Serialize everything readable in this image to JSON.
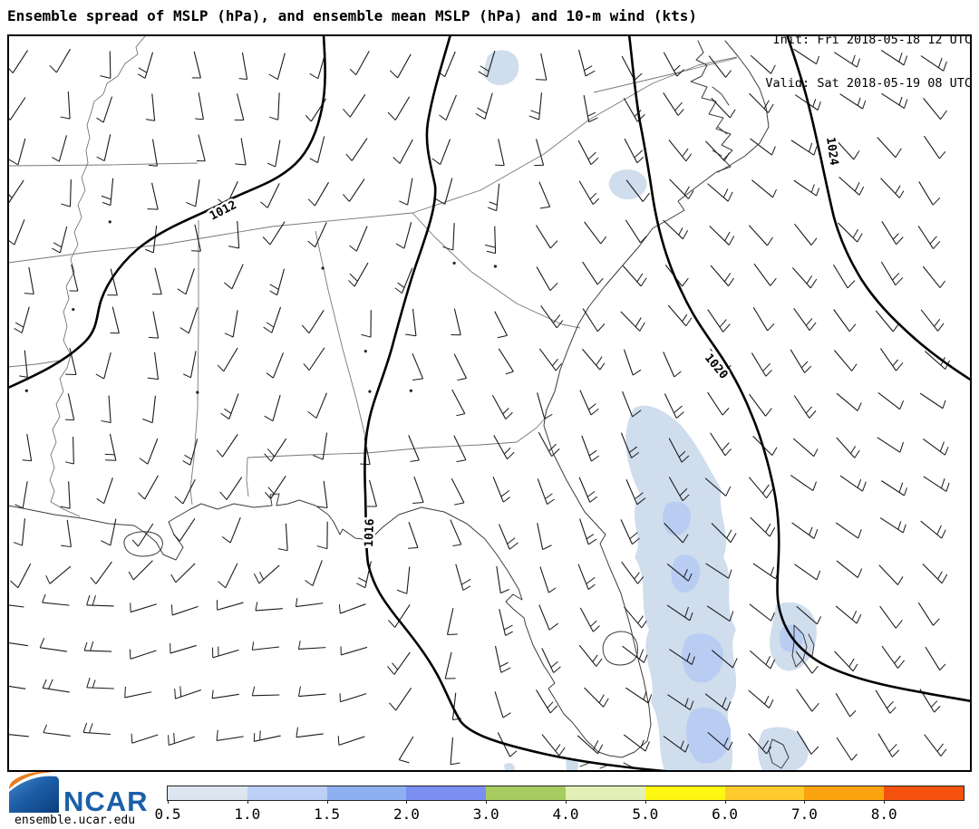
{
  "header": {
    "title": "Ensemble spread of MSLP (hPa), and ensemble mean MSLP (hPa) and 10-m wind (kts)",
    "init_line": "Init: Fri 2018-05-18 12 UTC",
    "valid_line": "Valid: Sat 2018-05-19 08 UTC"
  },
  "footer": {
    "logo_text": "NCAR",
    "site": "ensemble.ucar.edu"
  },
  "chart_data": {
    "type": "map",
    "description": "Ensemble spread of mean sea-level pressure (shaded, hPa), ensemble-mean MSLP contours (hPa) and 10-m wind barbs (kts) over the southeastern United States and adjacent Atlantic/Gulf waters",
    "contours": {
      "c1012": {
        "label": "1012"
      },
      "c1016": {
        "label": "1016"
      },
      "c1020": {
        "label": "1020"
      },
      "c1024": {
        "label": "1024"
      }
    },
    "colorbar": {
      "ticks": [
        "0.5",
        "1.0",
        "1.5",
        "2.0",
        "3.0",
        "4.0",
        "5.0",
        "6.0",
        "7.0",
        "8.0"
      ],
      "colors": [
        "#dce6f0",
        "#bccff4",
        "#8fb0f0",
        "#7b8ef2",
        "#a8cc60",
        "#e3f0b5",
        "#fdf712",
        "#fdcb2b",
        "#fca40f",
        "#f5520d"
      ],
      "units": "hPa"
    },
    "wind_field": {
      "grid_spacing": 47,
      "shaft_length": 30,
      "regimes": {
        "land_angle_deg": 100,
        "ocean_angle_deg": 46,
        "gulf_angle_deg": 175
      },
      "calm_fraction": 0.12
    }
  }
}
